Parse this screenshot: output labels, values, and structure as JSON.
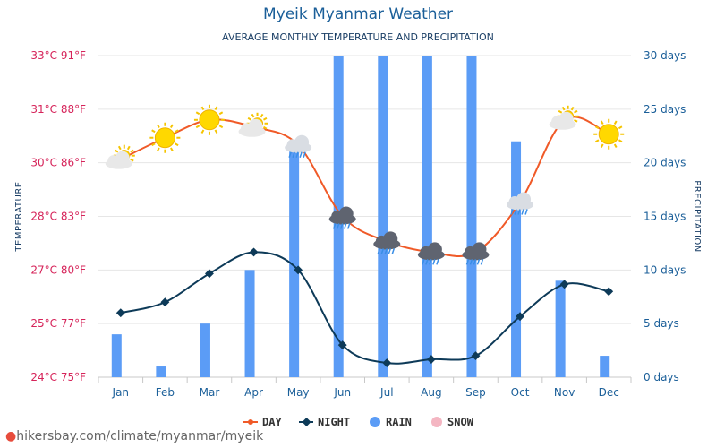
{
  "title": "Myeik Myanmar Weather",
  "subtitle": "AVERAGE MONTHLY TEMPERATURE AND PRECIPITATION",
  "footer": "hikersbay.com/climate/myanmar/myeik",
  "chart_data": {
    "type": "line+bar",
    "categories": [
      "Jan",
      "Feb",
      "Mar",
      "Apr",
      "May",
      "Jun",
      "Jul",
      "Aug",
      "Sep",
      "Oct",
      "Nov",
      "Dec"
    ],
    "left_axis": {
      "label": "TEMPERATURE",
      "ticks": [
        "33°C 91°F",
        "31°C 88°F",
        "30°C 86°F",
        "28°C 83°F",
        "27°C 80°F",
        "25°C 77°F",
        "24°C 75°F"
      ],
      "range_c": [
        24,
        33
      ]
    },
    "right_axis": {
      "label": "PRECIPITATION",
      "ticks": [
        "30 days",
        "25 days",
        "20 days",
        "15 days",
        "10 days",
        "5 days",
        "0 days"
      ],
      "range": [
        0,
        30
      ]
    },
    "series": [
      {
        "name": "DAY",
        "type": "line",
        "color": "#f05a28",
        "values": [
          30.1,
          30.7,
          31.2,
          31.0,
          30.5,
          28.5,
          27.8,
          27.5,
          27.5,
          28.9,
          31.2,
          30.8
        ]
      },
      {
        "name": "NIGHT",
        "type": "line",
        "color": "#0d3a58",
        "values": [
          25.8,
          26.1,
          26.9,
          27.5,
          27.0,
          24.9,
          24.4,
          24.5,
          24.6,
          25.7,
          26.6,
          26.4
        ]
      },
      {
        "name": "RAIN",
        "type": "bar",
        "color": "#5b9cf6",
        "unit": "days",
        "values": [
          4,
          1,
          5,
          10,
          22,
          30,
          30,
          30,
          30,
          22,
          9,
          2
        ]
      },
      {
        "name": "SNOW",
        "type": "bar",
        "color": "#f4b6c2",
        "unit": "days",
        "values": [
          0,
          0,
          0,
          0,
          0,
          0,
          0,
          0,
          0,
          0,
          0,
          0
        ]
      }
    ],
    "weather_icons": [
      "partly-sunny-icon",
      "sun-icon",
      "sun-icon",
      "partly-sunny-icon",
      "cloud-rain-icon",
      "storm-icon",
      "storm-icon",
      "storm-icon",
      "storm-icon",
      "cloud-rain-icon",
      "partly-sunny-icon",
      "sun-icon"
    ],
    "legend": [
      "DAY",
      "NIGHT",
      "RAIN",
      "SNOW"
    ],
    "legend_position": "bottom",
    "grid": true
  }
}
